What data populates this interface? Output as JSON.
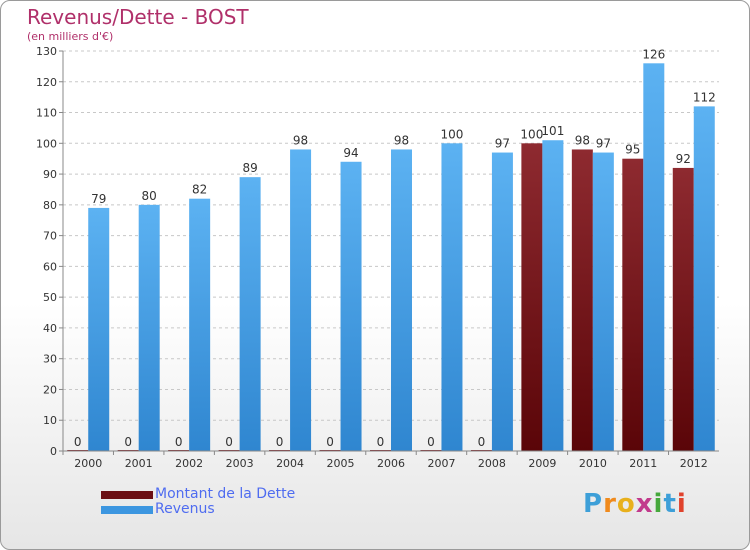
{
  "colors": {
    "title": "#b0306a",
    "legend_text": "#4f6cf0",
    "dette": "#6b0f14",
    "dette_light": "#8e2a30",
    "revenus": "#3c96e0",
    "revenus_light": "#5cb2f2"
  },
  "logo": {
    "letters": [
      "P",
      "r",
      "o",
      "x",
      "i",
      "t",
      "i"
    ],
    "colors": [
      "#3d9fd8",
      "#f08a1c",
      "#e8b01c",
      "#c23a8c",
      "#46a83c",
      "#3d9fd8",
      "#e0422c"
    ]
  },
  "chart_data": {
    "type": "bar",
    "title": "Revenus/Dette - BOST",
    "subtitle": "(en milliers d'€)",
    "categories": [
      "2000",
      "2001",
      "2002",
      "2003",
      "2004",
      "2005",
      "2006",
      "2007",
      "2008",
      "2009",
      "2010",
      "2011",
      "2012"
    ],
    "series": [
      {
        "name": "Montant de la Dette",
        "values": [
          0,
          0,
          0,
          0,
          0,
          0,
          0,
          0,
          0,
          100,
          98,
          95,
          92
        ]
      },
      {
        "name": "Revenus",
        "values": [
          79,
          80,
          82,
          89,
          98,
          94,
          98,
          100,
          97,
          101,
          97,
          126,
          112
        ]
      }
    ],
    "ylim": [
      0,
      130
    ],
    "yticks": [
      0,
      10,
      20,
      30,
      40,
      50,
      60,
      70,
      80,
      90,
      100,
      110,
      120,
      130
    ],
    "grid": true,
    "legend": "bottom-left"
  }
}
